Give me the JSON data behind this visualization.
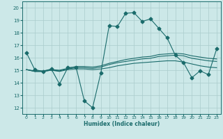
{
  "bg_color": "#cce8e8",
  "grid_color": "#aacccc",
  "line_color": "#1a6b6b",
  "xlabel": "Humidex (Indice chaleur)",
  "xlim": [
    -0.5,
    23.5
  ],
  "ylim": [
    11.5,
    20.5
  ],
  "yticks": [
    12,
    13,
    14,
    15,
    16,
    17,
    18,
    19,
    20
  ],
  "xticks": [
    0,
    1,
    2,
    3,
    4,
    5,
    6,
    7,
    8,
    9,
    10,
    11,
    12,
    13,
    14,
    15,
    16,
    17,
    18,
    19,
    20,
    21,
    22,
    23
  ],
  "line1_x": [
    0,
    1,
    2,
    3,
    4,
    5,
    6,
    7,
    8,
    9,
    10,
    11,
    12,
    13,
    14,
    15,
    16,
    17,
    18,
    19,
    20,
    21,
    22,
    23
  ],
  "line1_y": [
    16.4,
    15.05,
    14.9,
    15.1,
    13.9,
    15.2,
    15.25,
    12.55,
    12.0,
    14.8,
    18.55,
    18.5,
    19.55,
    19.6,
    18.9,
    19.1,
    18.35,
    17.6,
    16.2,
    15.6,
    14.4,
    14.95,
    14.65,
    16.7
  ],
  "line2_x": [
    0,
    1,
    2,
    3,
    4,
    5,
    6,
    7,
    8,
    9,
    10,
    11,
    12,
    13,
    14,
    15,
    16,
    17,
    18,
    19,
    20,
    21,
    22,
    23
  ],
  "line2_y": [
    15.05,
    14.9,
    14.9,
    15.0,
    14.9,
    15.05,
    15.1,
    15.1,
    15.05,
    15.1,
    15.2,
    15.35,
    15.45,
    15.55,
    15.6,
    15.65,
    15.7,
    15.75,
    15.75,
    15.65,
    15.5,
    15.35,
    15.25,
    15.2
  ],
  "line3_x": [
    0,
    1,
    2,
    3,
    4,
    5,
    6,
    7,
    8,
    9,
    10,
    11,
    12,
    13,
    14,
    15,
    16,
    17,
    18,
    19,
    20,
    21,
    22,
    23
  ],
  "line3_y": [
    15.05,
    14.9,
    14.9,
    15.0,
    14.95,
    15.1,
    15.2,
    15.2,
    15.15,
    15.25,
    15.45,
    15.6,
    15.7,
    15.8,
    15.9,
    15.95,
    16.1,
    16.15,
    16.2,
    16.15,
    15.95,
    15.85,
    15.75,
    15.7
  ],
  "line4_x": [
    0,
    1,
    2,
    3,
    4,
    5,
    6,
    7,
    8,
    9,
    10,
    11,
    12,
    13,
    14,
    15,
    16,
    17,
    18,
    19,
    20,
    21,
    22,
    23
  ],
  "line4_y": [
    15.05,
    14.95,
    14.95,
    15.05,
    15.0,
    15.15,
    15.3,
    15.3,
    15.25,
    15.35,
    15.55,
    15.7,
    15.85,
    15.95,
    16.05,
    16.1,
    16.25,
    16.3,
    16.35,
    16.3,
    16.15,
    16.05,
    15.95,
    15.9
  ]
}
